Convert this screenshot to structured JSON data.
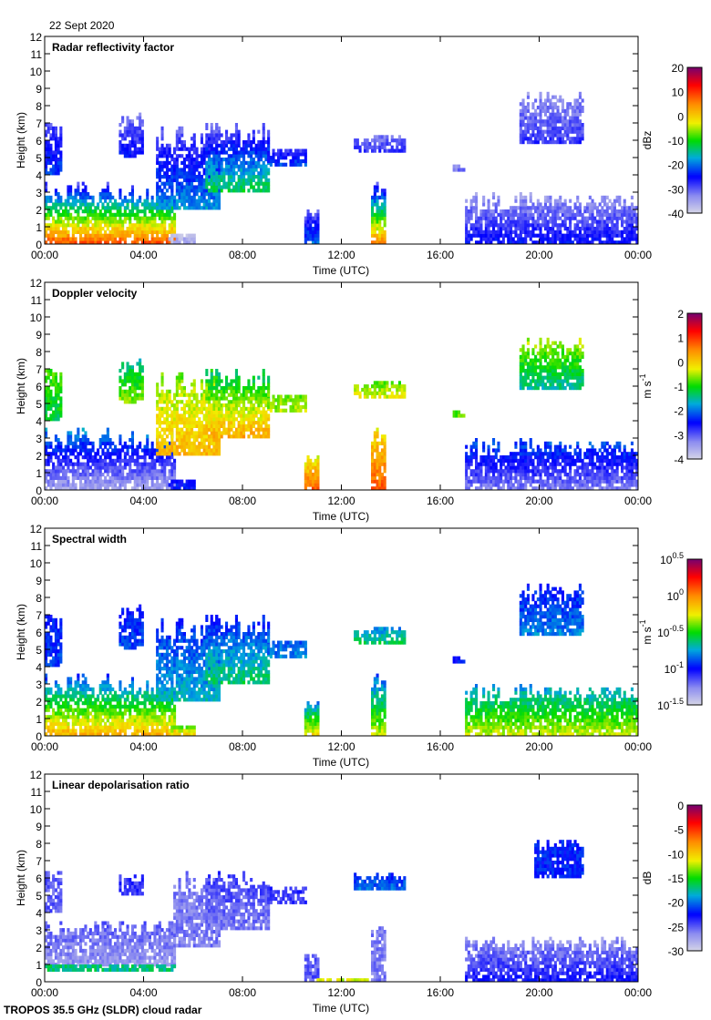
{
  "date_label": "22 Sept 2020",
  "footer": "TROPOS 35.5 GHz (SLDR) cloud radar",
  "chart_data": [
    {
      "type": "heatmap",
      "title": "Radar reflectivity factor",
      "xlabel": "Time (UTC)",
      "ylabel": "Height (km)",
      "xlim": [
        0,
        24
      ],
      "ylim": [
        0,
        12
      ],
      "xticks": [
        "00:00",
        "04:00",
        "08:00",
        "12:00",
        "16:00",
        "20:00",
        "00:00"
      ],
      "yticks": [
        "0",
        "1",
        "2",
        "3",
        "4",
        "5",
        "6",
        "7",
        "8",
        "9",
        "10",
        "11",
        "12"
      ],
      "colorbar": {
        "unit": "dBz",
        "unit_exp": "",
        "range": [
          -40,
          20
        ],
        "ticks": [
          {
            "v": 20,
            "base": "20",
            "exp": ""
          },
          {
            "v": 10,
            "base": "10",
            "exp": ""
          },
          {
            "v": 0,
            "base": "0",
            "exp": ""
          },
          {
            "v": -10,
            "base": "-10",
            "exp": ""
          },
          {
            "v": -20,
            "base": "-20",
            "exp": ""
          },
          {
            "v": -30,
            "base": "-30",
            "exp": ""
          },
          {
            "v": -40,
            "base": "-40",
            "exp": ""
          }
        ]
      },
      "regions": [
        [
          0,
          5.2,
          0,
          3.5,
          8,
          -30
        ],
        [
          0,
          0.7,
          4,
          7,
          -22,
          -30
        ],
        [
          3,
          4,
          5,
          7.5,
          -25,
          -32
        ],
        [
          4.5,
          7,
          2,
          7,
          -18,
          -32
        ],
        [
          6.5,
          9,
          3,
          7,
          -12,
          -32
        ],
        [
          9,
          10.5,
          4.5,
          5.5,
          -22,
          -30
        ],
        [
          10.5,
          11,
          0,
          2,
          -20,
          -32
        ],
        [
          12.5,
          14.5,
          5.3,
          6.2,
          -28,
          -32
        ],
        [
          13.2,
          13.7,
          0,
          3.5,
          5,
          -30
        ],
        [
          16.5,
          17,
          4.2,
          4.5,
          -32,
          -34
        ],
        [
          19.2,
          21.8,
          5.8,
          8.8,
          -28,
          -34
        ],
        [
          17,
          24,
          0,
          3,
          -25,
          -35
        ],
        [
          5,
          6,
          0,
          0.6,
          -36,
          -38
        ]
      ]
    },
    {
      "type": "heatmap",
      "title": "Doppler velocity",
      "xlabel": "Time (UTC)",
      "ylabel": "Height (km)",
      "xlim": [
        0,
        24
      ],
      "ylim": [
        0,
        12
      ],
      "xticks": [
        "00:00",
        "04:00",
        "08:00",
        "12:00",
        "16:00",
        "20:00",
        "00:00"
      ],
      "yticks": [
        "0",
        "1",
        "2",
        "3",
        "4",
        "5",
        "6",
        "7",
        "8",
        "9",
        "10",
        "11",
        "12"
      ],
      "colorbar": {
        "unit": "m s",
        "unit_exp": "-1",
        "range": [
          -4,
          2
        ],
        "ticks": [
          {
            "v": 2,
            "base": "2",
            "exp": ""
          },
          {
            "v": 1,
            "base": "1",
            "exp": ""
          },
          {
            "v": 0,
            "base": "0",
            "exp": ""
          },
          {
            "v": -1,
            "base": "-1",
            "exp": ""
          },
          {
            "v": -2,
            "base": "-2",
            "exp": ""
          },
          {
            "v": -3,
            "base": "-3",
            "exp": ""
          },
          {
            "v": -4,
            "base": "-4",
            "exp": ""
          }
        ]
      },
      "regions": [
        [
          0,
          5.2,
          0,
          3.5,
          -3.5,
          -1.8
        ],
        [
          0,
          0.7,
          4,
          7,
          -1.2,
          -0.8
        ],
        [
          3,
          4,
          5,
          7.5,
          -0.6,
          -1.5
        ],
        [
          4.5,
          7,
          2,
          7,
          0.2,
          -0.8
        ],
        [
          6.5,
          9,
          3,
          7,
          0.3,
          -1.5
        ],
        [
          9,
          10.5,
          4.5,
          5.5,
          -0.5,
          -0.8
        ],
        [
          10.5,
          11,
          0,
          2,
          0.8,
          -0.5
        ],
        [
          12.5,
          14.5,
          5.3,
          6.2,
          -0.3,
          -0.8
        ],
        [
          13.2,
          13.7,
          0,
          3.5,
          0.8,
          -0.2
        ],
        [
          16.5,
          17,
          4.2,
          4.5,
          -0.8,
          -0.8
        ],
        [
          19.2,
          21.8,
          5.8,
          8.8,
          -1.5,
          -0.4
        ],
        [
          17,
          24,
          0,
          3,
          -3.2,
          -2
        ],
        [
          5,
          6,
          0,
          0.6,
          -2.5,
          -2.5
        ]
      ]
    },
    {
      "type": "heatmap",
      "title": "Spectral width",
      "xlabel": "Time (UTC)",
      "ylabel": "Height (km)",
      "xlim": [
        0,
        24
      ],
      "ylim": [
        0,
        12
      ],
      "xticks": [
        "00:00",
        "04:00",
        "08:00",
        "12:00",
        "16:00",
        "20:00",
        "00:00"
      ],
      "yticks": [
        "0",
        "1",
        "2",
        "3",
        "4",
        "5",
        "6",
        "7",
        "8",
        "9",
        "10",
        "11",
        "12"
      ],
      "colorbar": {
        "unit": "m s",
        "unit_exp": "-1",
        "range": [
          -1.5,
          0.5
        ],
        "ticks": [
          {
            "v": 0.5,
            "base": "10",
            "exp": "0.5"
          },
          {
            "v": 0,
            "base": "10",
            "exp": "0"
          },
          {
            "v": -0.5,
            "base": "10",
            "exp": "-0.5"
          },
          {
            "v": -1,
            "base": "10",
            "exp": "-1"
          },
          {
            "v": -1.5,
            "base": "10",
            "exp": "-1.5"
          }
        ]
      },
      "regions": [
        [
          0,
          5.2,
          0,
          3.5,
          -0.1,
          -0.95
        ],
        [
          0,
          0.7,
          4,
          7,
          -0.9,
          -1
        ],
        [
          3,
          4,
          5,
          7.5,
          -0.9,
          -1
        ],
        [
          4.5,
          7,
          2,
          7,
          -0.7,
          -1
        ],
        [
          6.5,
          9,
          3,
          7,
          -0.6,
          -1
        ],
        [
          9,
          10.5,
          4.5,
          5.5,
          -0.8,
          -0.9
        ],
        [
          10.5,
          11,
          0,
          2,
          -0.2,
          -0.9
        ],
        [
          12.5,
          14.5,
          5.3,
          6.2,
          -0.6,
          -0.8
        ],
        [
          13.2,
          13.7,
          0,
          3.5,
          -0.3,
          -0.9
        ],
        [
          16.5,
          17,
          4.2,
          4.5,
          -1,
          -1
        ],
        [
          19.2,
          21.8,
          5.8,
          8.8,
          -0.8,
          -1
        ],
        [
          17,
          24,
          0,
          3,
          -0.3,
          -0.8
        ],
        [
          5,
          6,
          0,
          0.6,
          -0.2,
          -0.5
        ]
      ]
    },
    {
      "type": "heatmap",
      "title": "Linear depolarisation ratio",
      "xlabel": "Time (UTC)",
      "ylabel": "Height (km)",
      "xlim": [
        0,
        24
      ],
      "ylim": [
        0,
        12
      ],
      "xticks": [
        "00:00",
        "04:00",
        "08:00",
        "12:00",
        "16:00",
        "20:00",
        "00:00"
      ],
      "yticks": [
        "0",
        "1",
        "2",
        "3",
        "4",
        "5",
        "6",
        "7",
        "8",
        "9",
        "10",
        "11",
        "12"
      ],
      "colorbar": {
        "unit": "dB",
        "unit_exp": "",
        "range": [
          -30,
          0
        ],
        "ticks": [
          {
            "v": 0,
            "base": "0",
            "exp": ""
          },
          {
            "v": -5,
            "base": "-5",
            "exp": ""
          },
          {
            "v": -10,
            "base": "-10",
            "exp": ""
          },
          {
            "v": -15,
            "base": "-15",
            "exp": ""
          },
          {
            "v": -20,
            "base": "-20",
            "exp": ""
          },
          {
            "v": -25,
            "base": "-25",
            "exp": ""
          },
          {
            "v": -30,
            "base": "-30",
            "exp": ""
          }
        ]
      },
      "regions": [
        [
          0,
          5.2,
          0.9,
          3.5,
          -27,
          -25
        ],
        [
          0,
          5.2,
          0.6,
          0.9,
          -17,
          -17
        ],
        [
          0,
          0.7,
          4,
          6.5,
          -25,
          -25
        ],
        [
          3,
          4,
          5,
          6.2,
          -24,
          -24
        ],
        [
          5.2,
          7,
          2,
          6.5,
          -26,
          -26
        ],
        [
          6.5,
          9,
          3,
          6.5,
          -26,
          -24
        ],
        [
          9,
          10.5,
          4.5,
          5.5,
          -24,
          -24
        ],
        [
          10.5,
          11,
          0,
          2,
          -25,
          -25
        ],
        [
          12.5,
          14.5,
          5.3,
          6.2,
          -20,
          -22
        ],
        [
          13.2,
          13.7,
          0,
          3.5,
          -26,
          -26
        ],
        [
          19.8,
          21.8,
          6,
          8.2,
          -22,
          -22
        ],
        [
          17,
          24,
          0,
          2.5,
          -23,
          -27
        ],
        [
          11,
          13,
          0,
          0.2,
          -12,
          -12
        ]
      ]
    }
  ]
}
